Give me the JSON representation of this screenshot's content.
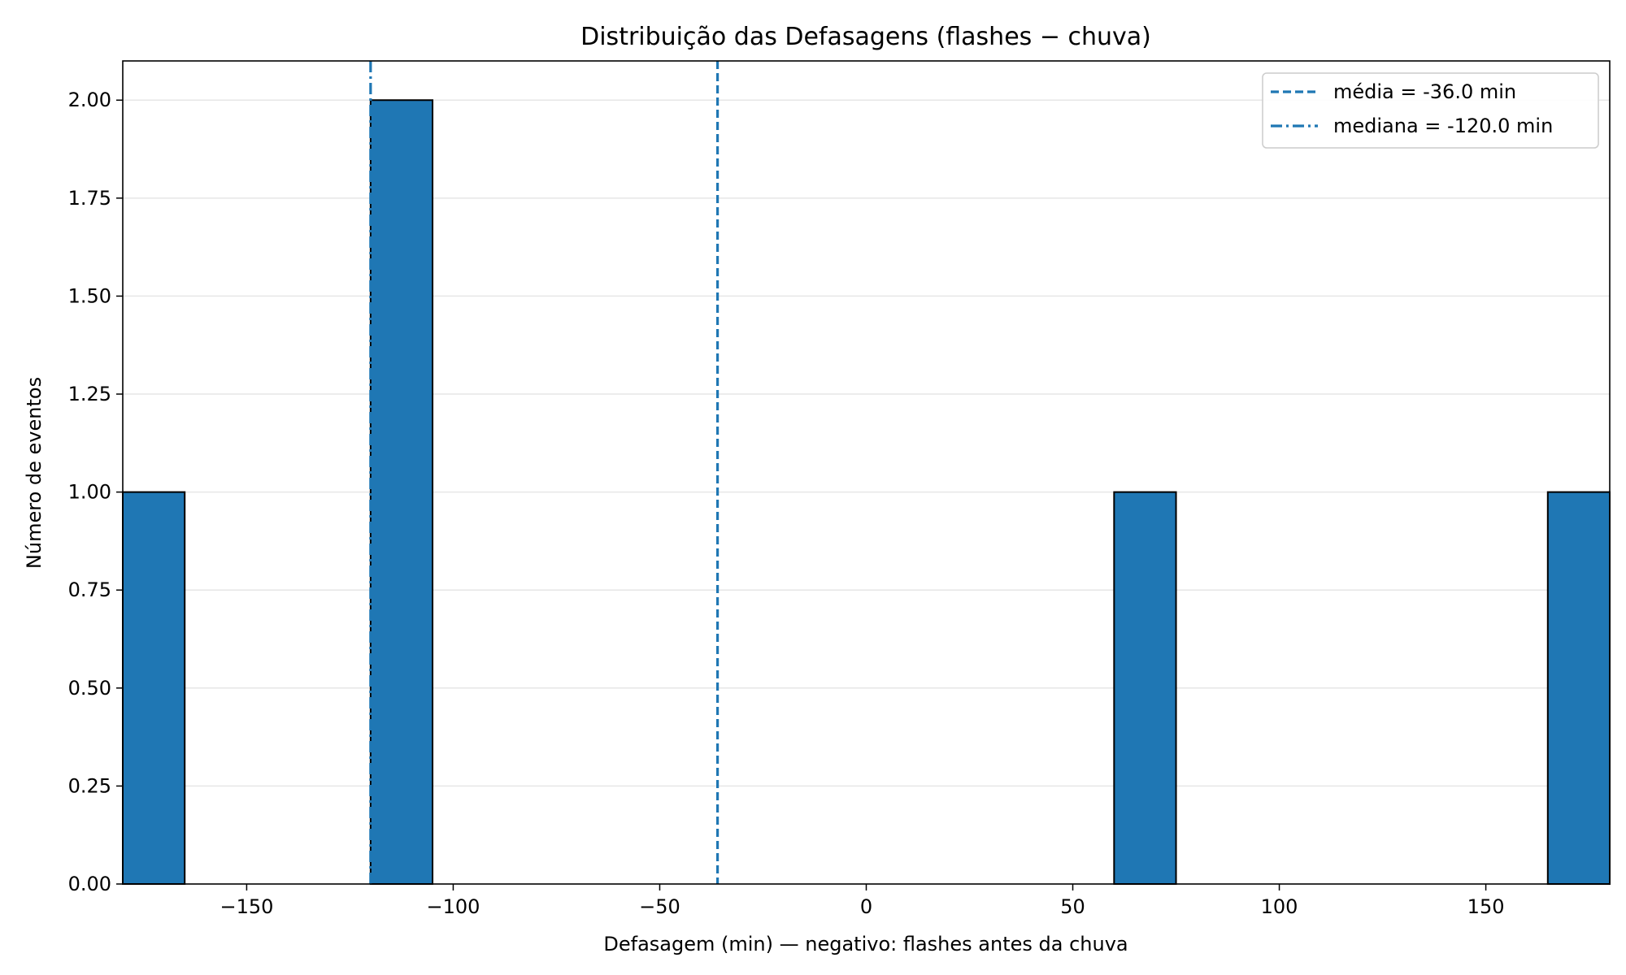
{
  "chart_data": {
    "type": "bar",
    "title": "Distribuição das Defasagens (flashes − chuva)",
    "xlabel": "Defasagem (min)  —  negativo: flashes antes da chuva",
    "ylabel": "Número de eventos",
    "xlim": [
      -180,
      180
    ],
    "ylim": [
      0,
      2.1
    ],
    "x_ticks": [
      -150,
      -100,
      -50,
      0,
      50,
      100,
      150
    ],
    "x_tick_labels": [
      "−150",
      "−100",
      "−50",
      "0",
      "50",
      "100",
      "150"
    ],
    "y_ticks": [
      0,
      0.25,
      0.5,
      0.75,
      1.0,
      1.25,
      1.5,
      1.75,
      2.0
    ],
    "y_tick_labels": [
      "0.00",
      "0.25",
      "0.50",
      "0.75",
      "1.00",
      "1.25",
      "1.50",
      "1.75",
      "2.00"
    ],
    "bins": [
      {
        "start": -180,
        "end": -165,
        "count": 1
      },
      {
        "start": -120,
        "end": -105,
        "count": 2
      },
      {
        "start": 60,
        "end": 75,
        "count": 1
      },
      {
        "start": 165,
        "end": 180,
        "count": 1
      }
    ],
    "grid": "horizontal",
    "bar_color": "#1f77b4",
    "line_color": "#1f77b4",
    "reference_lines": [
      {
        "name": "média",
        "value": -36.0,
        "style": "dashed",
        "label": "média = -36.0 min"
      },
      {
        "name": "mediana",
        "value": -120.0,
        "style": "dashdot",
        "label": "mediana = -120.0 min"
      }
    ],
    "legend_position": "top-right"
  }
}
